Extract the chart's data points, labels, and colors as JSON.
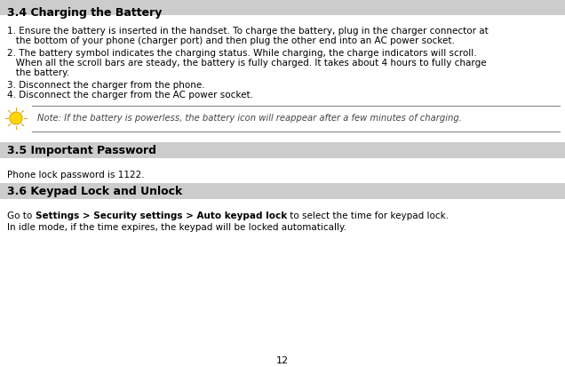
{
  "page_number": "12",
  "bg_color": "#ffffff",
  "section_header_bg": "#cccccc",
  "body_text_color": "#000000",
  "note_text_color": "#444444",
  "section_34_title": "3.4 Charging the Battery",
  "section_35_title": "3.5 Important Password",
  "section_36_title": "3.6 Keypad Lock and Unlock",
  "item1": "1. Ensure the battery is inserted in the handset. To charge the battery, plug in the charger connector at",
  "item1b": "   the bottom of your phone (charger port) and then plug the other end into an AC power socket.",
  "item2": "2. The battery symbol indicates the charging status. While charging, the charge indicators will scroll.",
  "item2b": "   When all the scroll bars are steady, the battery is fully charged. It takes about 4 hours to fully charge",
  "item2c": "   the battery.",
  "item3": "3. Disconnect the charger from the phone.",
  "item4": "4. Disconnect the charger from the AC power socket.",
  "note_text": "Note: If the battery is powerless, the battery icon will reappear after a few minutes of charging.",
  "item_35": "Phone lock password is 1122.",
  "go_to": "Go to ",
  "bold_part": "Settings > Security settings > Auto keypad lock",
  "plain_part": " to select the time for keypad lock.",
  "item_36_line2": "In idle mode, if the time expires, the keypad will be locked automatically.",
  "fs_title": 9.0,
  "fs_body": 7.5,
  "fs_note": 7.2,
  "fs_page": 8.0
}
